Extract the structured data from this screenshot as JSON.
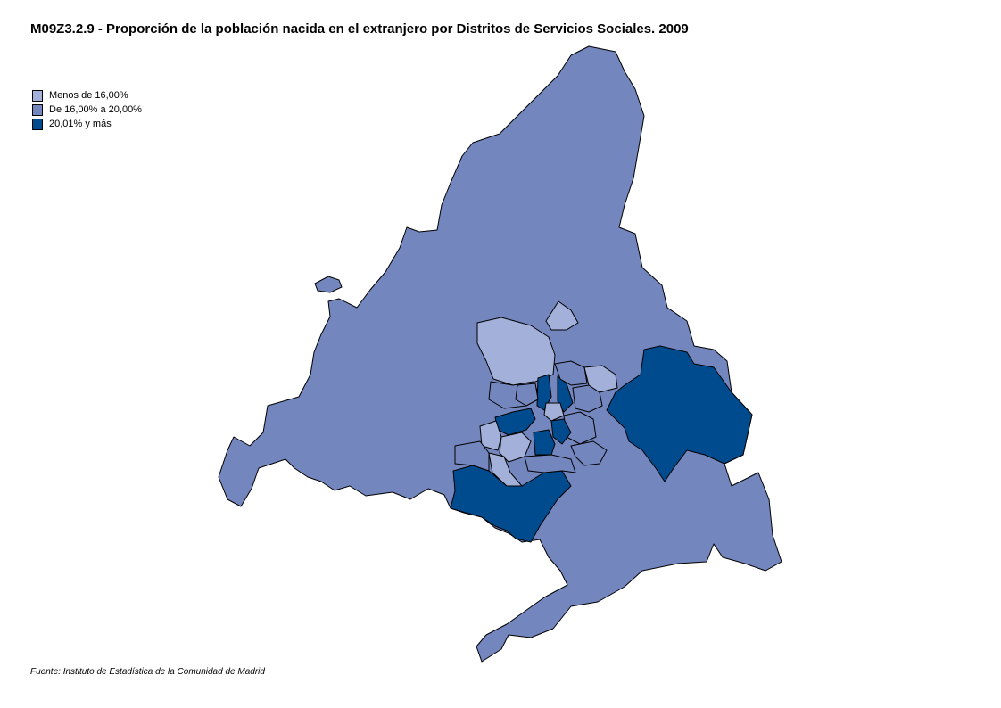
{
  "title": "M09Z3.2.9 - Proporción de la población nacida en el extranjero por Distritos de Servicios Sociales. 2009",
  "legend": {
    "items": [
      {
        "label": "Menos de 16,00%",
        "color": "#a3b0d9"
      },
      {
        "label": "De 16,00% a 20,00%",
        "color": "#7386be"
      },
      {
        "label": "20,01% y más",
        "color": "#004b8d"
      }
    ]
  },
  "source": "Fuente: Instituto de Estadística de la Comunidad de Madrid",
  "map_colors": {
    "border": "#000000",
    "background": "#ffffff"
  }
}
